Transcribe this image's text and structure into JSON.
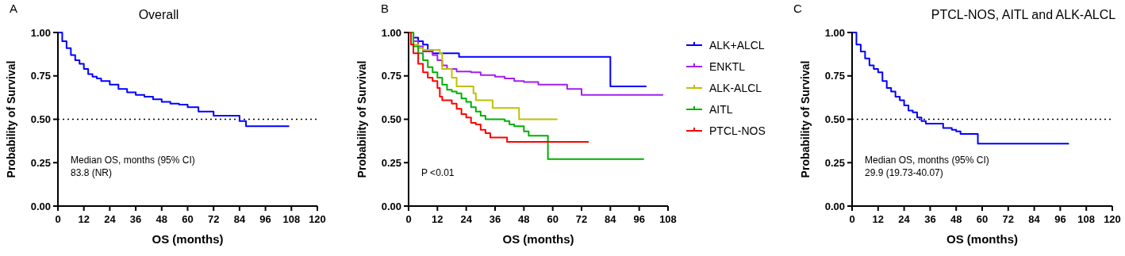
{
  "chart_data": [
    {
      "type": "step",
      "title": "Overall",
      "xlabel": "OS (months)",
      "ylabel": "Probability of Survival",
      "xlim": [
        0,
        120
      ],
      "xticks": [
        0,
        12,
        24,
        36,
        48,
        60,
        72,
        84,
        96,
        108,
        120
      ],
      "ylim": [
        0,
        1
      ],
      "yticks": [
        {
          "value": 0,
          "label": "0.00"
        },
        {
          "value": 0.25,
          "label": "0.25"
        },
        {
          "value": 0.5,
          "label": "0.50"
        },
        {
          "value": 0.75,
          "label": "0.75"
        },
        {
          "value": 1,
          "label": "1.00"
        }
      ],
      "legend": false,
      "grid": false,
      "ref_lines": [
        {
          "axis": "y",
          "value": 0.5,
          "line_style": "dotted",
          "color": "#000000"
        }
      ],
      "annotations": [
        "A",
        "Median OS, months (95% CI)",
        "83.8 (NR)"
      ],
      "series": [
        {
          "color": "#0000ff",
          "x": [
            0,
            2,
            4,
            6,
            8,
            10,
            12,
            14,
            16,
            18,
            20,
            24,
            28,
            32,
            36,
            40,
            44,
            48,
            52,
            56,
            60,
            65,
            72,
            84,
            87,
            107
          ],
          "values": [
            1,
            0.95,
            0.91,
            0.87,
            0.84,
            0.82,
            0.79,
            0.76,
            0.745,
            0.735,
            0.72,
            0.7,
            0.675,
            0.655,
            0.64,
            0.63,
            0.615,
            0.6,
            0.59,
            0.585,
            0.57,
            0.545,
            0.52,
            0.49,
            0.46,
            0.46
          ]
        }
      ]
    },
    {
      "type": "step",
      "xlabel": "OS (months)",
      "ylabel": "Probability of Survival",
      "xlim": [
        0,
        108
      ],
      "xticks": [
        0,
        12,
        24,
        36,
        48,
        60,
        72,
        84,
        96,
        108
      ],
      "ylim": [
        0,
        1
      ],
      "yticks": [
        {
          "value": 0,
          "label": "0.00"
        },
        {
          "value": 0.25,
          "label": "0.25"
        },
        {
          "value": 0.5,
          "label": "0.50"
        },
        {
          "value": 0.75,
          "label": "0.75"
        },
        {
          "value": 1,
          "label": "1.00"
        }
      ],
      "legend": "right",
      "grid": false,
      "annotations": [
        "B",
        "P <0.01"
      ],
      "series": [
        {
          "name": "ALK+ALCL",
          "color": "#0000ff",
          "x": [
            0,
            2,
            4,
            6,
            8,
            10,
            21,
            84,
            99
          ],
          "values": [
            1,
            0.97,
            0.95,
            0.93,
            0.9,
            0.88,
            0.86,
            0.69,
            0.69
          ]
        },
        {
          "name": "ENKTL",
          "color": "#a020f0",
          "x": [
            0,
            2,
            4,
            6,
            10,
            12,
            14,
            16,
            20,
            26,
            30,
            36,
            40,
            44,
            48,
            54,
            66,
            72,
            106
          ],
          "values": [
            1,
            0.95,
            0.92,
            0.89,
            0.87,
            0.84,
            0.81,
            0.79,
            0.775,
            0.77,
            0.755,
            0.745,
            0.735,
            0.72,
            0.715,
            0.7,
            0.675,
            0.64,
            0.64
          ]
        },
        {
          "name": "ALK-ALCL",
          "color": "#c0c000",
          "x": [
            0,
            2,
            4,
            6,
            13,
            14,
            18,
            20,
            27,
            28,
            35,
            46,
            62
          ],
          "values": [
            1,
            0.93,
            0.91,
            0.9,
            0.88,
            0.79,
            0.74,
            0.69,
            0.65,
            0.61,
            0.565,
            0.5,
            0.5
          ]
        },
        {
          "name": "AITL",
          "color": "#00b000",
          "x": [
            0,
            2,
            4,
            6,
            8,
            10,
            12,
            14,
            16,
            18,
            20,
            22,
            24,
            26,
            28,
            30,
            32,
            40,
            42,
            44,
            48,
            50,
            58,
            98
          ],
          "values": [
            1,
            0.92,
            0.88,
            0.84,
            0.8,
            0.77,
            0.74,
            0.7,
            0.67,
            0.66,
            0.65,
            0.62,
            0.6,
            0.57,
            0.545,
            0.52,
            0.5,
            0.49,
            0.47,
            0.46,
            0.43,
            0.405,
            0.27,
            0.27
          ]
        },
        {
          "name": "PTCL-NOS",
          "color": "#ff0000",
          "x": [
            0,
            1,
            2,
            4,
            6,
            8,
            10,
            12,
            13,
            14,
            18,
            20,
            22,
            24,
            26,
            28,
            30,
            32,
            34,
            41,
            75
          ],
          "values": [
            1,
            0.93,
            0.88,
            0.82,
            0.77,
            0.74,
            0.72,
            0.68,
            0.63,
            0.61,
            0.59,
            0.56,
            0.53,
            0.51,
            0.48,
            0.47,
            0.44,
            0.42,
            0.395,
            0.37,
            0.37
          ]
        }
      ]
    },
    {
      "type": "step",
      "title": "PTCL-NOS, AITL and ALK-ALCL",
      "xlabel": "OS (months)",
      "ylabel": "Probability of Survival",
      "xlim": [
        0,
        120
      ],
      "xticks": [
        0,
        12,
        24,
        36,
        48,
        60,
        72,
        84,
        96,
        108,
        120
      ],
      "ylim": [
        0,
        1
      ],
      "yticks": [
        {
          "value": 0,
          "label": "0.00"
        },
        {
          "value": 0.25,
          "label": "0.25"
        },
        {
          "value": 0.5,
          "label": "0.50"
        },
        {
          "value": 0.75,
          "label": "0.75"
        },
        {
          "value": 1,
          "label": "1.00"
        }
      ],
      "legend": false,
      "grid": false,
      "ref_lines": [
        {
          "axis": "y",
          "value": 0.5,
          "line_style": "dotted",
          "color": "#000000"
        }
      ],
      "annotations": [
        "C",
        "Median OS, months (95% CI)",
        "29.9 (19.73-40.07)"
      ],
      "series": [
        {
          "color": "#0000ff",
          "x": [
            0,
            2,
            4,
            6,
            8,
            10,
            12,
            14,
            16,
            18,
            20,
            22,
            24,
            26,
            28,
            30,
            32,
            34,
            40,
            42,
            46,
            48,
            50,
            58,
            100
          ],
          "values": [
            1,
            0.93,
            0.89,
            0.85,
            0.81,
            0.79,
            0.77,
            0.72,
            0.68,
            0.66,
            0.63,
            0.61,
            0.58,
            0.55,
            0.54,
            0.51,
            0.49,
            0.475,
            0.475,
            0.45,
            0.44,
            0.43,
            0.415,
            0.36,
            0.36
          ]
        }
      ]
    }
  ]
}
